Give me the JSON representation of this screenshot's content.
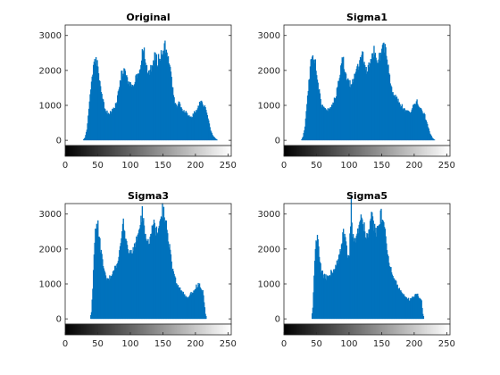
{
  "chart_data": [
    {
      "type": "bar",
      "title": "Original",
      "xlabel": "",
      "ylabel": "",
      "xlim": [
        0,
        255
      ],
      "ylim": [
        -150,
        3300
      ],
      "xticks": [
        0,
        50,
        100,
        150,
        200,
        250
      ],
      "yticks": [
        0,
        1000,
        2000,
        3000
      ],
      "xtick_labels": [
        "0",
        "50",
        "100",
        "150",
        "200",
        "250"
      ],
      "ytick_labels": [
        "0",
        "1000",
        "2000",
        "3000"
      ],
      "grid": false,
      "colorbar": "grayscale 0-255",
      "bar_color": "#0072BD",
      "profile": [
        [
          0,
          0
        ],
        [
          27,
          0
        ],
        [
          30,
          80
        ],
        [
          33,
          300
        ],
        [
          36,
          900
        ],
        [
          39,
          1500
        ],
        [
          42,
          1950
        ],
        [
          45,
          2200
        ],
        [
          48,
          2250
        ],
        [
          51,
          2000
        ],
        [
          54,
          1500
        ],
        [
          58,
          1100
        ],
        [
          62,
          850
        ],
        [
          66,
          770
        ],
        [
          70,
          800
        ],
        [
          74,
          900
        ],
        [
          78,
          1050
        ],
        [
          82,
          1400
        ],
        [
          86,
          1900
        ],
        [
          89,
          2000
        ],
        [
          92,
          1900
        ],
        [
          95,
          1750
        ],
        [
          99,
          1550
        ],
        [
          103,
          1600
        ],
        [
          107,
          1750
        ],
        [
          111,
          1950
        ],
        [
          115,
          2050
        ],
        [
          118,
          2450
        ],
        [
          121,
          2550
        ],
        [
          124,
          2100
        ],
        [
          127,
          1900
        ],
        [
          130,
          2000
        ],
        [
          134,
          2200
        ],
        [
          138,
          2450
        ],
        [
          142,
          2250
        ],
        [
          146,
          2500
        ],
        [
          150,
          2550
        ],
        [
          153,
          2700
        ],
        [
          156,
          2500
        ],
        [
          159,
          2200
        ],
        [
          162,
          1900
        ],
        [
          165,
          1450
        ],
        [
          168,
          1100
        ],
        [
          171,
          1000
        ],
        [
          175,
          1100
        ],
        [
          179,
          900
        ],
        [
          182,
          850
        ],
        [
          186,
          800
        ],
        [
          190,
          700
        ],
        [
          194,
          650
        ],
        [
          198,
          800
        ],
        [
          202,
          850
        ],
        [
          206,
          1050
        ],
        [
          210,
          1100
        ],
        [
          214,
          950
        ],
        [
          217,
          800
        ],
        [
          220,
          550
        ],
        [
          223,
          300
        ],
        [
          226,
          150
        ],
        [
          230,
          60
        ],
        [
          234,
          0
        ],
        [
          255,
          0
        ]
      ]
    },
    {
      "type": "bar",
      "title": "Sigma1",
      "xlabel": "",
      "ylabel": "",
      "xlim": [
        0,
        255
      ],
      "ylim": [
        -150,
        3300
      ],
      "xticks": [
        0,
        50,
        100,
        150,
        200,
        250
      ],
      "yticks": [
        0,
        1000,
        2000,
        3000
      ],
      "xtick_labels": [
        "0",
        "50",
        "100",
        "150",
        "200",
        "250"
      ],
      "ytick_labels": [
        "0",
        "1000",
        "2000",
        "3000"
      ],
      "grid": false,
      "colorbar": "grayscale 0-255",
      "bar_color": "#0072BD",
      "profile": [
        [
          0,
          0
        ],
        [
          26,
          0
        ],
        [
          29,
          100
        ],
        [
          32,
          400
        ],
        [
          35,
          1000
        ],
        [
          38,
          1700
        ],
        [
          41,
          2200
        ],
        [
          44,
          2350
        ],
        [
          47,
          2250
        ],
        [
          50,
          2000
        ],
        [
          53,
          1500
        ],
        [
          57,
          1050
        ],
        [
          61,
          900
        ],
        [
          66,
          850
        ],
        [
          71,
          950
        ],
        [
          76,
          1100
        ],
        [
          80,
          1300
        ],
        [
          84,
          1800
        ],
        [
          88,
          2200
        ],
        [
          91,
          2300
        ],
        [
          94,
          1950
        ],
        [
          98,
          1700
        ],
        [
          102,
          1600
        ],
        [
          106,
          1750
        ],
        [
          110,
          2000
        ],
        [
          114,
          2150
        ],
        [
          117,
          2500
        ],
        [
          120,
          2500
        ],
        [
          123,
          2200
        ],
        [
          126,
          2000
        ],
        [
          129,
          2050
        ],
        [
          133,
          2300
        ],
        [
          137,
          2550
        ],
        [
          140,
          2650
        ],
        [
          143,
          2300
        ],
        [
          147,
          2450
        ],
        [
          150,
          2650
        ],
        [
          153,
          2750
        ],
        [
          156,
          2550
        ],
        [
          159,
          2250
        ],
        [
          162,
          1800
        ],
        [
          165,
          1450
        ],
        [
          168,
          1300
        ],
        [
          172,
          1200
        ],
        [
          176,
          1100
        ],
        [
          180,
          1000
        ],
        [
          184,
          900
        ],
        [
          188,
          850
        ],
        [
          192,
          800
        ],
        [
          196,
          850
        ],
        [
          200,
          1050
        ],
        [
          204,
          1100
        ],
        [
          208,
          950
        ],
        [
          212,
          850
        ],
        [
          216,
          700
        ],
        [
          220,
          450
        ],
        [
          224,
          200
        ],
        [
          228,
          60
        ],
        [
          232,
          0
        ],
        [
          255,
          0
        ]
      ]
    },
    {
      "type": "bar",
      "title": "Sigma3",
      "xlabel": "",
      "ylabel": "",
      "xlim": [
        0,
        255
      ],
      "ylim": [
        -150,
        3300
      ],
      "xticks": [
        0,
        50,
        100,
        150,
        200,
        250
      ],
      "yticks": [
        0,
        1000,
        2000,
        3000
      ],
      "xtick_labels": [
        "0",
        "50",
        "100",
        "150",
        "200",
        "250"
      ],
      "ytick_labels": [
        "0",
        "1000",
        "2000",
        "3000"
      ],
      "grid": false,
      "colorbar": "grayscale 0-255",
      "bar_color": "#0072BD",
      "profile": [
        [
          0,
          0
        ],
        [
          38,
          0
        ],
        [
          40,
          200
        ],
        [
          42,
          900
        ],
        [
          44,
          1800
        ],
        [
          46,
          2500
        ],
        [
          48,
          2850
        ],
        [
          50,
          2700
        ],
        [
          52,
          2300
        ],
        [
          55,
          1900
        ],
        [
          58,
          1500
        ],
        [
          62,
          1200
        ],
        [
          66,
          1150
        ],
        [
          70,
          1200
        ],
        [
          74,
          1350
        ],
        [
          78,
          1550
        ],
        [
          82,
          1800
        ],
        [
          86,
          2200
        ],
        [
          89,
          2750
        ],
        [
          92,
          2450
        ],
        [
          96,
          2000
        ],
        [
          100,
          1850
        ],
        [
          104,
          1950
        ],
        [
          108,
          2200
        ],
        [
          112,
          2500
        ],
        [
          115,
          2650
        ],
        [
          118,
          3050
        ],
        [
          121,
          2550
        ],
        [
          124,
          2200
        ],
        [
          128,
          2150
        ],
        [
          132,
          2450
        ],
        [
          136,
          2800
        ],
        [
          139,
          2500
        ],
        [
          142,
          2650
        ],
        [
          146,
          2900
        ],
        [
          149,
          3150
        ],
        [
          152,
          2950
        ],
        [
          155,
          2700
        ],
        [
          158,
          2300
        ],
        [
          161,
          1900
        ],
        [
          164,
          1500
        ],
        [
          168,
          1150
        ],
        [
          172,
          1000
        ],
        [
          176,
          850
        ],
        [
          180,
          750
        ],
        [
          184,
          650
        ],
        [
          188,
          600
        ],
        [
          192,
          700
        ],
        [
          196,
          800
        ],
        [
          200,
          900
        ],
        [
          204,
          1000
        ],
        [
          208,
          900
        ],
        [
          211,
          800
        ],
        [
          213,
          500
        ],
        [
          215,
          150
        ],
        [
          217,
          0
        ],
        [
          255,
          0
        ]
      ]
    },
    {
      "type": "bar",
      "title": "Sigma5",
      "xlabel": "",
      "ylabel": "",
      "xlim": [
        0,
        255
      ],
      "ylim": [
        -150,
        3300
      ],
      "xticks": [
        0,
        50,
        100,
        150,
        200,
        250
      ],
      "yticks": [
        0,
        1000,
        2000,
        3000
      ],
      "xtick_labels": [
        "0",
        "50",
        "100",
        "150",
        "200",
        "250"
      ],
      "ytick_labels": [
        "0",
        "1000",
        "2000",
        "3000"
      ],
      "grid": false,
      "colorbar": "grayscale 0-255",
      "bar_color": "#0072BD",
      "profile": [
        [
          0,
          0
        ],
        [
          42,
          0
        ],
        [
          44,
          300
        ],
        [
          46,
          1200
        ],
        [
          48,
          2000
        ],
        [
          50,
          2300
        ],
        [
          52,
          2200
        ],
        [
          54,
          1800
        ],
        [
          57,
          1400
        ],
        [
          61,
          1250
        ],
        [
          65,
          1200
        ],
        [
          69,
          1250
        ],
        [
          73,
          1350
        ],
        [
          77,
          1450
        ],
        [
          81,
          1600
        ],
        [
          85,
          1850
        ],
        [
          88,
          2150
        ],
        [
          91,
          2600
        ],
        [
          94,
          2200
        ],
        [
          97,
          1900
        ],
        [
          100,
          1800
        ],
        [
          103,
          3350
        ],
        [
          105,
          2450
        ],
        [
          108,
          2200
        ],
        [
          112,
          2400
        ],
        [
          116,
          2650
        ],
        [
          119,
          3000
        ],
        [
          122,
          2700
        ],
        [
          126,
          2400
        ],
        [
          130,
          2500
        ],
        [
          134,
          2900
        ],
        [
          138,
          2700
        ],
        [
          142,
          2500
        ],
        [
          146,
          2800
        ],
        [
          149,
          3000
        ],
        [
          152,
          2800
        ],
        [
          156,
          2300
        ],
        [
          160,
          1800
        ],
        [
          164,
          1400
        ],
        [
          168,
          1200
        ],
        [
          172,
          1050
        ],
        [
          176,
          900
        ],
        [
          180,
          750
        ],
        [
          184,
          700
        ],
        [
          188,
          600
        ],
        [
          192,
          550
        ],
        [
          196,
          600
        ],
        [
          200,
          650
        ],
        [
          204,
          700
        ],
        [
          208,
          600
        ],
        [
          211,
          500
        ],
        [
          213,
          150
        ],
        [
          215,
          0
        ],
        [
          255,
          0
        ]
      ]
    }
  ]
}
